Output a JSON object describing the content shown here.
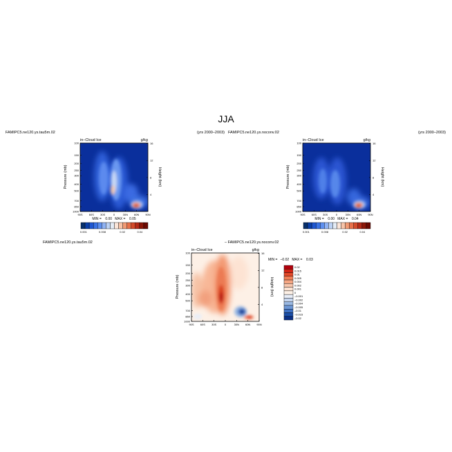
{
  "page": {
    "title": "JJA",
    "colors": {
      "background": "#ffffff",
      "frame": "#000000"
    }
  },
  "chart_data": [
    {
      "type": "heatmap",
      "id": "panel-1",
      "case_label": "FAMIPC5.ne120.ys.tau5m.02",
      "years_label": "(yrs 2000–2003)",
      "variable_label": "in–Cloud Ice",
      "units_label": "g/kg",
      "ylabel": "Pressure (mb)",
      "y2label": "Height (km)",
      "x_ticks": [
        "90S",
        "60S",
        "30S",
        "0",
        "30N",
        "60N",
        "90N"
      ],
      "y_ticks": [
        "100",
        "150",
        "200",
        "250",
        "300",
        "400",
        "500",
        "700",
        "850",
        "1000"
      ],
      "y2_ticks": [
        "16",
        "12",
        "8",
        "4"
      ],
      "xlim": [
        -90,
        90
      ],
      "ylim": [
        1000,
        100
      ],
      "y_scale": "log",
      "minmax_text": "MIN =    0.00   MAX =    0.05",
      "min": 0.0,
      "max": 0.05,
      "colorbar": {
        "orientation": "horizontal",
        "colors": [
          "#08306b",
          "#0b3fa8",
          "#1f57d1",
          "#3a73e6",
          "#5e90f0",
          "#8fb2f3",
          "#bcd2f5",
          "#e4ecf6",
          "#fbe6da",
          "#f7c4a9",
          "#f19a74",
          "#e7704a",
          "#d34a2a",
          "#b52b18",
          "#8c1708",
          "#6b0a02"
        ],
        "tick_labels": [
          "0.001",
          "0.008",
          "0.02",
          "0.04"
        ]
      },
      "features": [
        {
          "desc": "tropical deep convection column",
          "lat_range": [
            -40,
            5
          ],
          "p_range": [
            120,
            700
          ],
          "level": "blue-to-light"
        },
        {
          "desc": "tropical core maximum",
          "lat": -8,
          "p": 420,
          "level": "light-orange"
        },
        {
          "desc": "SH mid-latitude tower",
          "lat_range": [
            -70,
            -45
          ],
          "p_range": [
            180,
            500
          ],
          "level": "medium-blue"
        },
        {
          "desc": "NH low-level maximum",
          "lat": 42,
          "p": 820,
          "level": "red (max 0.05)"
        }
      ]
    },
    {
      "type": "heatmap",
      "id": "panel-2",
      "case_label": "FAMIPC5.ne120.ys.noconv.02",
      "years_label": "(yrs 2000–2003)",
      "variable_label": "in–Cloud Ice",
      "units_label": "g/kg",
      "ylabel": "Pressure (mb)",
      "y2label": "Height (km)",
      "x_ticks": [
        "90S",
        "60S",
        "30S",
        "0",
        "30N",
        "60N",
        "90N"
      ],
      "y_ticks": [
        "100",
        "150",
        "200",
        "250",
        "300",
        "400",
        "500",
        "700",
        "850",
        "1000"
      ],
      "y2_ticks": [
        "16",
        "12",
        "8",
        "4"
      ],
      "xlim": [
        -90,
        90
      ],
      "ylim": [
        1000,
        100
      ],
      "y_scale": "log",
      "minmax_text": "MIN =    0.00   MAX =    0.04",
      "min": 0.0,
      "max": 0.04,
      "colorbar": {
        "orientation": "horizontal",
        "colors": [
          "#08306b",
          "#0b3fa8",
          "#1f57d1",
          "#3a73e6",
          "#5e90f0",
          "#8fb2f3",
          "#bcd2f5",
          "#e4ecf6",
          "#fbe6da",
          "#f7c4a9",
          "#f19a74",
          "#e7704a",
          "#d34a2a",
          "#b52b18",
          "#8c1708",
          "#6b0a02"
        ],
        "tick_labels": [
          "0.001",
          "0.008",
          "0.02",
          "0.04"
        ]
      },
      "features": [
        {
          "desc": "tropical column (weaker)",
          "lat_range": [
            -40,
            0
          ],
          "p_range": [
            150,
            700
          ],
          "level": "medium-blue"
        },
        {
          "desc": "SH mid-latitude tower",
          "lat_range": [
            -70,
            -45
          ],
          "p_range": [
            200,
            500
          ],
          "level": "medium-blue"
        },
        {
          "desc": "NH low-level maximum",
          "lat": 40,
          "p": 800,
          "level": "red (max 0.04)"
        }
      ]
    },
    {
      "type": "heatmap",
      "id": "panel-diff",
      "case_label_left": "FAMIPC5.ne120.ys.tau5m.02",
      "case_label_right": "–  FAMIPC5.ne120.ys.noconv.02",
      "variable_label": "in–Cloud Ice",
      "units_label": "g/kg",
      "ylabel": "Pressure (mb)",
      "y2label": "Height (km)",
      "x_ticks": [
        "90S",
        "60S",
        "30S",
        "0",
        "30N",
        "60N",
        "90N"
      ],
      "y_ticks": [
        "100",
        "150",
        "200",
        "250",
        "300",
        "400",
        "500",
        "700",
        "850",
        "1000"
      ],
      "y2_ticks": [
        "16",
        "12",
        "8",
        "4"
      ],
      "xlim": [
        -90,
        90
      ],
      "ylim": [
        1000,
        100
      ],
      "y_scale": "log",
      "minmax_text": "MIN =   –0.02   MAX =    0.03",
      "min": -0.02,
      "max": 0.03,
      "colorbar": {
        "orientation": "vertical",
        "colors": [
          "#b3000c",
          "#d42415",
          "#e54a2a",
          "#f07d55",
          "#f6a683",
          "#fac7ad",
          "#fde3d3",
          "#fdf0e6",
          "#e8eef8",
          "#c6d6ef",
          "#9ab9e4",
          "#6d97d6",
          "#3f71c4",
          "#1b4fa9",
          "#0a2f86"
        ],
        "tick_labels": [
          "0.02",
          "0.015",
          "0.01",
          "0.005",
          "0.004",
          "0.002",
          "0.001",
          "0",
          "–0.001",
          "–0.002",
          "–0.004",
          "–0.005",
          "–0.01",
          "–0.015",
          "–0.02"
        ]
      },
      "features": [
        {
          "desc": "positive tropical column",
          "lat_range": [
            -45,
            10
          ],
          "p_range": [
            150,
            800
          ],
          "level": "light-to-dark red"
        },
        {
          "desc": "positive core",
          "lat": -5,
          "p": 500,
          "level": "dark red (0.02)"
        },
        {
          "desc": "negative NH low-level",
          "lat": 35,
          "p": 760,
          "level": "blue (–0.02)"
        },
        {
          "desc": "positive below negative",
          "lat": 50,
          "p": 850,
          "level": "red"
        }
      ]
    }
  ]
}
